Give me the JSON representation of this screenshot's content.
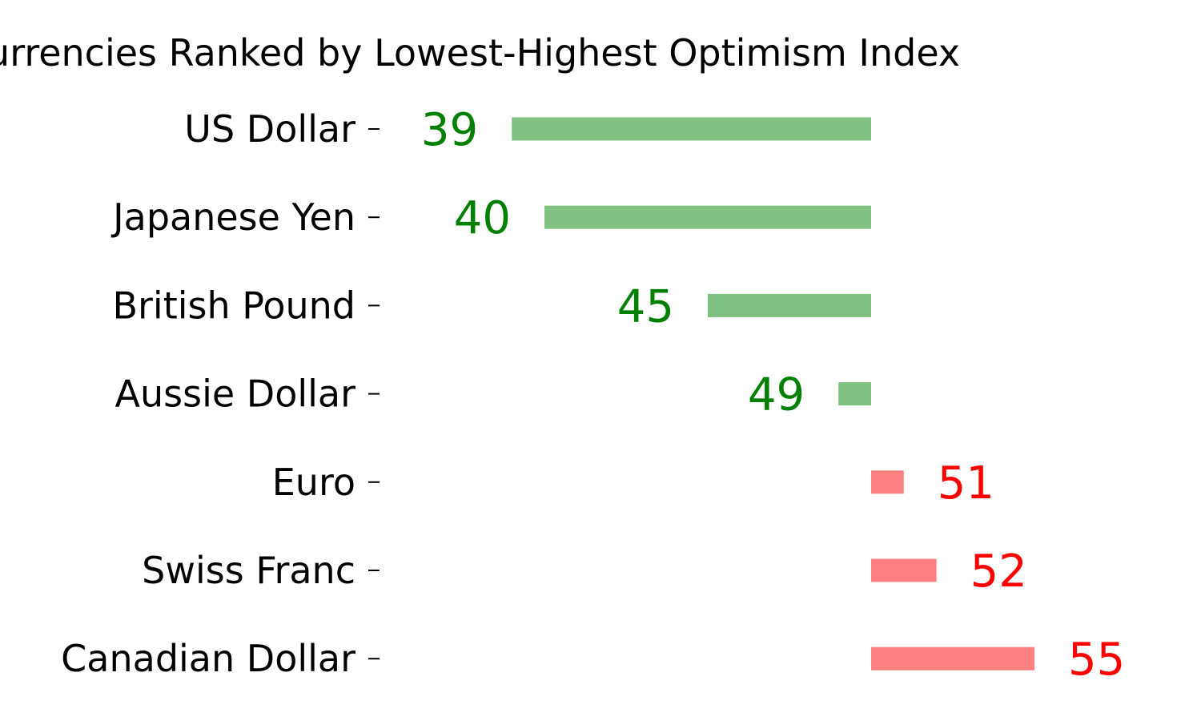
{
  "chart_data": {
    "type": "bar",
    "orientation": "horizontal",
    "title": "Currencies Ranked by Lowest-Highest Optimism Index",
    "baseline": 50,
    "categories": [
      "US Dollar",
      "Japanese Yen",
      "British Pound",
      "Aussie Dollar",
      "Euro",
      "Swiss Franc",
      "Canadian Dollar"
    ],
    "values": [
      39,
      40,
      45,
      49,
      51,
      52,
      55
    ],
    "xlim": [
      35,
      60
    ],
    "grid": false,
    "legend": "none",
    "colors": {
      "below_baseline_bar": "#80c080",
      "below_baseline_label": "#008000",
      "above_baseline_bar": "#ff8080",
      "above_baseline_label": "#ff0000"
    }
  }
}
